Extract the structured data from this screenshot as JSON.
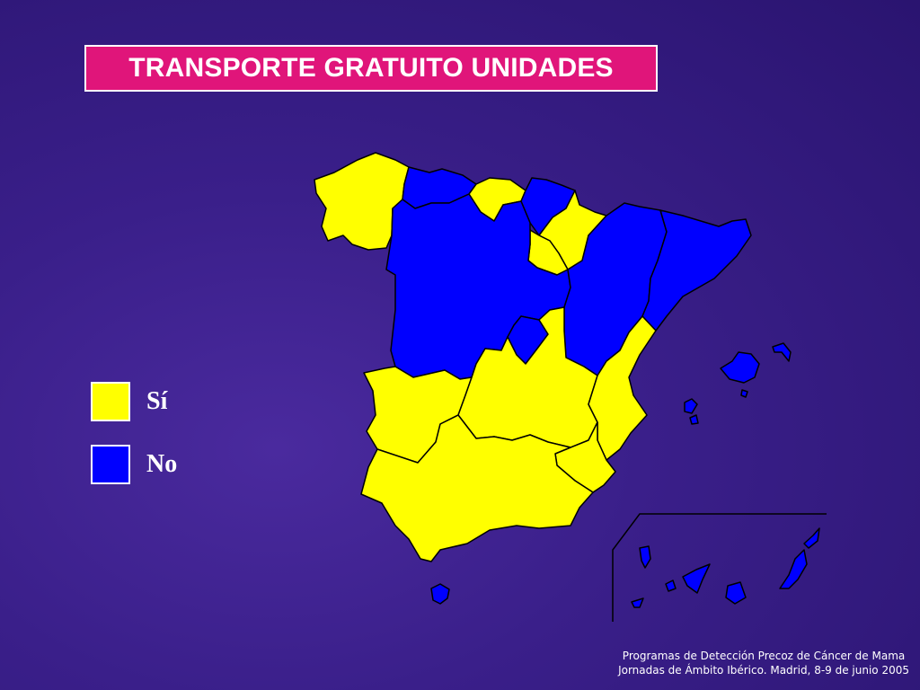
{
  "title": "TRANSPORTE GRATUITO UNIDADES",
  "legend": [
    {
      "label": "Sí",
      "color": "#ffff00"
    },
    {
      "label": "No",
      "color": "#0000ff"
    }
  ],
  "colors": {
    "yes": "#ffff00",
    "no": "#0000ff",
    "title_bg": "#e0157a",
    "background": "#3a1f8a"
  },
  "regions": {
    "galicia": "yes",
    "asturias": "no",
    "cantabria": "yes",
    "pais_vasco": "no",
    "navarra": "yes",
    "la_rioja": "yes",
    "castilla_leon": "no",
    "aragon": "no",
    "cataluna": "no",
    "madrid": "no",
    "extremadura": "yes",
    "castilla_la_mancha": "yes",
    "comunidad_valenciana": "yes",
    "murcia": "yes",
    "andalucia": "yes",
    "baleares": "no",
    "canarias": "no",
    "ceuta": "no"
  },
  "footer": {
    "line1": "Programas de Detección Precoz de Cáncer de Mama",
    "line2": "Jornadas de Ámbito Ibérico. Madrid, 8-9 de junio 2005"
  }
}
